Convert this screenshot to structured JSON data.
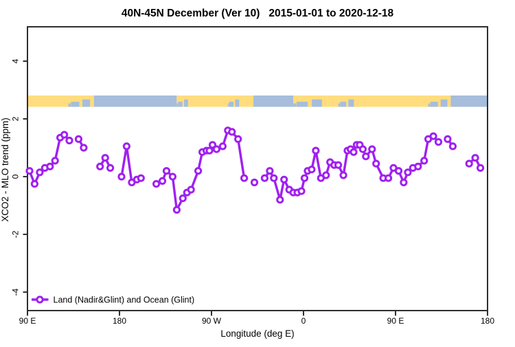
{
  "chart_data": {
    "type": "line",
    "title": "40N-45N December (Ver 10)   2015-01-01 to 2020-12-18",
    "xlabel": "Longitude (deg E)",
    "ylabel": "XCO2 - MLO trend (ppm)",
    "xlim": [
      90,
      540
    ],
    "ylim": [
      -4.64,
      5.19
    ],
    "x_wrap_note": "x axis is longitude continuing eastward past the dateline: 90E, 180, 90W, 0, 90E, 180",
    "grid": "off",
    "background_color": "#FFFFFF",
    "frame_color": "#2E2E2E",
    "x_ticks": [
      {
        "lon": 90,
        "label": "90 E"
      },
      {
        "lon": 180,
        "label": "180"
      },
      {
        "lon": 270,
        "label": "90 W"
      },
      {
        "lon": 360,
        "label": "0"
      },
      {
        "lon": 450,
        "label": "90 E"
      },
      {
        "lon": 540,
        "label": "180"
      }
    ],
    "y_ticks": [
      {
        "v": -4,
        "label": "-4"
      },
      {
        "v": -2,
        "label": "-2"
      },
      {
        "v": 0,
        "label": "0"
      },
      {
        "v": 2,
        "label": "2"
      },
      {
        "v": 4,
        "label": "4"
      }
    ],
    "legend": [
      {
        "label": "Land (Nadir&Glint) and Ocean (Glint)",
        "color": "#A020F0",
        "marker": "open-circle",
        "position": "bottom-left"
      }
    ],
    "series": [
      {
        "name": "Land (Nadir&Glint) and Ocean (Glint)",
        "color": "#A020F0",
        "marker": "open-circle",
        "units": "ppm",
        "segments": [
          [
            [
              92,
              0.2
            ],
            [
              97,
              -0.25
            ],
            [
              102,
              0.15
            ],
            [
              107,
              0.3
            ],
            [
              112,
              0.35
            ],
            [
              117,
              0.55
            ],
            [
              122,
              1.35
            ],
            [
              126,
              1.45
            ],
            [
              131,
              1.25
            ]
          ],
          [
            [
              140,
              1.3
            ],
            [
              145,
              1.0
            ]
          ],
          [
            [
              161,
              0.35
            ],
            [
              166,
              0.65
            ],
            [
              171,
              0.3
            ]
          ],
          [
            [
              182,
              0.0
            ],
            [
              187,
              1.05
            ],
            [
              192,
              -0.2
            ],
            [
              197,
              -0.1
            ],
            [
              201,
              -0.05
            ]
          ],
          [
            [
              216,
              -0.25
            ],
            [
              222,
              -0.15
            ],
            [
              226,
              0.2
            ],
            [
              232,
              0.0
            ],
            [
              236,
              -1.15
            ],
            [
              242,
              -0.75
            ],
            [
              246,
              -0.55
            ],
            [
              250,
              -0.45
            ],
            [
              257,
              0.2
            ],
            [
              261,
              0.85
            ],
            [
              265,
              0.9
            ],
            [
              268,
              0.9
            ],
            [
              271,
              1.1
            ],
            [
              275,
              0.95
            ],
            [
              281,
              1.05
            ],
            [
              286,
              1.6
            ],
            [
              290,
              1.55
            ],
            [
              296,
              1.3
            ],
            [
              302,
              -0.05
            ]
          ],
          [
            [
              312,
              -0.2
            ]
          ],
          [
            [
              322,
              -0.05
            ],
            [
              327,
              0.2
            ],
            [
              331,
              -0.05
            ],
            [
              337,
              -0.8
            ],
            [
              341,
              -0.1
            ],
            [
              346,
              -0.45
            ],
            [
              350,
              -0.55
            ],
            [
              354,
              -0.55
            ],
            [
              358,
              -0.5
            ],
            [
              361,
              -0.05
            ],
            [
              364,
              0.2
            ],
            [
              368,
              0.25
            ],
            [
              372,
              0.9
            ],
            [
              377,
              -0.05
            ],
            [
              382,
              0.05
            ],
            [
              386,
              0.5
            ],
            [
              390,
              0.4
            ],
            [
              394,
              0.4
            ],
            [
              399,
              0.05
            ],
            [
              403,
              0.9
            ],
            [
              406,
              0.95
            ],
            [
              409,
              0.85
            ],
            [
              412,
              1.1
            ],
            [
              415,
              1.1
            ],
            [
              418,
              0.95
            ],
            [
              421,
              0.7
            ],
            [
              427,
              0.95
            ],
            [
              431,
              0.45
            ],
            [
              438,
              -0.05
            ],
            [
              443,
              -0.05
            ],
            [
              448,
              0.3
            ],
            [
              453,
              0.2
            ],
            [
              458,
              -0.2
            ],
            [
              462,
              0.15
            ],
            [
              467,
              0.3
            ],
            [
              472,
              0.35
            ],
            [
              478,
              0.55
            ],
            [
              482,
              1.3
            ],
            [
              487,
              1.4
            ],
            [
              492,
              1.2
            ]
          ],
          [
            [
              501,
              1.3
            ],
            [
              506,
              1.05
            ]
          ],
          [
            [
              522,
              0.45
            ],
            [
              528,
              0.65
            ],
            [
              533,
              0.3
            ]
          ]
        ]
      }
    ],
    "band": {
      "description": "land/ocean surface strip drawn across the plot",
      "y_range_ppm": [
        2.43,
        2.82
      ],
      "land_color": "#FFDC7E",
      "ocean_color": "#A6BDDC",
      "segments": [
        {
          "from": 90,
          "to": 130,
          "type": "land"
        },
        {
          "from": 130,
          "to": 155,
          "type": "mixed"
        },
        {
          "from": 155,
          "to": 236,
          "type": "ocean"
        },
        {
          "from": 236,
          "to": 249,
          "type": "mixed"
        },
        {
          "from": 249,
          "to": 286,
          "type": "land"
        },
        {
          "from": 286,
          "to": 299,
          "type": "mixed"
        },
        {
          "from": 299,
          "to": 311,
          "type": "land"
        },
        {
          "from": 311,
          "to": 350,
          "type": "ocean"
        },
        {
          "from": 350,
          "to": 383,
          "type": "mixed"
        },
        {
          "from": 383,
          "to": 394,
          "type": "land"
        },
        {
          "from": 394,
          "to": 412,
          "type": "mixed"
        },
        {
          "from": 412,
          "to": 482,
          "type": "land"
        },
        {
          "from": 482,
          "to": 504,
          "type": "mixed"
        },
        {
          "from": 504,
          "to": 540,
          "type": "ocean"
        }
      ]
    }
  }
}
